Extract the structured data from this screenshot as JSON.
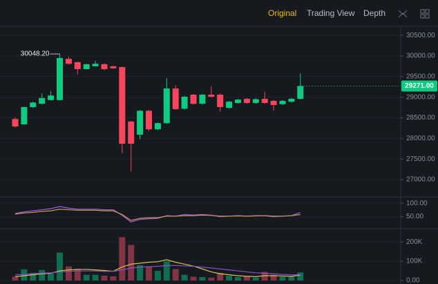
{
  "tabs": [
    "Original",
    "Trading View",
    "Depth"
  ],
  "active_tab": 0,
  "chart_data": [
    {
      "type": "candlestick",
      "open": [
        28470,
        28340,
        28760,
        28840,
        28930,
        28930,
        29930,
        29850,
        29680,
        29750,
        29800,
        29750,
        29730,
        28410,
        28090,
        28670,
        28220,
        28370,
        29210,
        28720,
        29060,
        28840,
        29060,
        29060,
        28740,
        28860,
        28960,
        28860,
        28960,
        28910,
        28830,
        28890,
        28960
      ],
      "high": [
        28510,
        28770,
        28890,
        29090,
        29150,
        30048.2,
        29980,
        29860,
        29810,
        29880,
        29820,
        29760,
        29740,
        28420,
        28690,
        28690,
        28390,
        29460,
        29290,
        29030,
        29080,
        29080,
        29260,
        29090,
        28910,
        28960,
        28980,
        28980,
        29130,
        28930,
        28930,
        28980,
        29580
      ],
      "low": [
        28260,
        28330,
        28740,
        28820,
        28920,
        28920,
        29790,
        29550,
        29670,
        29740,
        29660,
        29690,
        27640,
        27200,
        27980,
        28180,
        28200,
        28350,
        28690,
        28700,
        28820,
        28820,
        28990,
        28650,
        28720,
        28840,
        28840,
        28840,
        28840,
        28670,
        28810,
        28870,
        28940
      ],
      "close": [
        28290,
        28760,
        28870,
        28980,
        29040,
        29950,
        29810,
        29680,
        29800,
        29810,
        29680,
        29700,
        27870,
        27870,
        28670,
        28220,
        28370,
        29210,
        28710,
        29010,
        28840,
        29060,
        29010,
        28760,
        28890,
        28940,
        28860,
        28950,
        28860,
        28810,
        28910,
        28960,
        29271
      ],
      "up_color": "#0ecb81",
      "down_color": "#f6465d",
      "ylim": [
        26580,
        30720
      ],
      "yticks": [
        {
          "value": 30500,
          "label": "30500.00"
        },
        {
          "value": 30000,
          "label": "30000.00"
        },
        {
          "value": 29500,
          "label": "29500.00"
        },
        {
          "value": 29000,
          "label": "29000.00"
        },
        {
          "value": 28500,
          "label": "28500.00"
        },
        {
          "value": 28000,
          "label": "28000.00"
        },
        {
          "value": 27500,
          "label": "27500.00"
        },
        {
          "value": 27000,
          "label": "27000.00"
        }
      ],
      "last_price": {
        "value": 29271,
        "label": "29271.00"
      },
      "high_annotation": {
        "value": 30048.2,
        "label": "30048.20"
      },
      "grid": true
    },
    {
      "type": "line",
      "series": [
        {
          "color": "#a45ee5",
          "values": [
            62,
            68,
            72,
            76,
            80,
            88,
            82,
            78,
            78,
            78,
            76,
            76,
            55,
            30,
            40,
            42,
            44,
            54,
            52,
            58,
            56,
            58,
            56,
            50,
            52,
            54,
            52,
            54,
            54,
            50,
            52,
            54,
            66
          ]
        },
        {
          "color": "#c99a5c",
          "values": [
            60,
            64,
            66,
            70,
            72,
            78,
            76,
            74,
            74,
            74,
            72,
            72,
            58,
            36,
            44,
            46,
            46,
            52,
            52,
            54,
            54,
            56,
            55,
            52,
            52,
            53,
            52,
            53,
            54,
            52,
            52,
            54,
            58
          ]
        }
      ],
      "ylim": [
        5,
        124
      ],
      "yticks": [
        {
          "value": 100,
          "label": "100.00"
        },
        {
          "value": 50,
          "label": "50.00"
        }
      ],
      "grid": true
    },
    {
      "type": "bar",
      "values": [
        20000,
        58000,
        40000,
        55000,
        36000,
        145000,
        73000,
        60000,
        30000,
        30000,
        25000,
        22000,
        225000,
        185000,
        80000,
        70000,
        50000,
        100000,
        60000,
        30000,
        20000,
        18000,
        15000,
        40000,
        25000,
        18000,
        22000,
        15000,
        45000,
        30000,
        20000,
        20000,
        42000
      ],
      "up_color": "#0f6d52",
      "down_color": "#823444",
      "series": [
        {
          "color": "#d9c34a",
          "values": [
            20000,
            25000,
            30000,
            35000,
            38000,
            50000,
            55000,
            58000,
            58000,
            55000,
            52000,
            48000,
            70000,
            85000,
            90000,
            95000,
            98000,
            108000,
            95000,
            85000,
            75000,
            60000,
            45000,
            35000,
            30000,
            25000,
            22000,
            20000,
            25000,
            25000,
            24000,
            22000,
            28000
          ]
        },
        {
          "color": "#8a4fd0",
          "values": [
            30000,
            32000,
            35000,
            38000,
            40000,
            45000,
            48000,
            50000,
            50000,
            50000,
            48000,
            48000,
            55000,
            65000,
            70000,
            72000,
            74000,
            78000,
            78000,
            76000,
            74000,
            70000,
            65000,
            60000,
            55000,
            50000,
            45000,
            40000,
            38000,
            35000,
            32000,
            30000,
            30000
          ]
        }
      ],
      "ylim": [
        -18000,
        269000
      ],
      "yticks": [
        {
          "value": 200000,
          "label": "200K"
        },
        {
          "value": 100000,
          "label": "100K"
        },
        {
          "value": 0,
          "label": "0.00"
        }
      ],
      "grid": true
    }
  ]
}
